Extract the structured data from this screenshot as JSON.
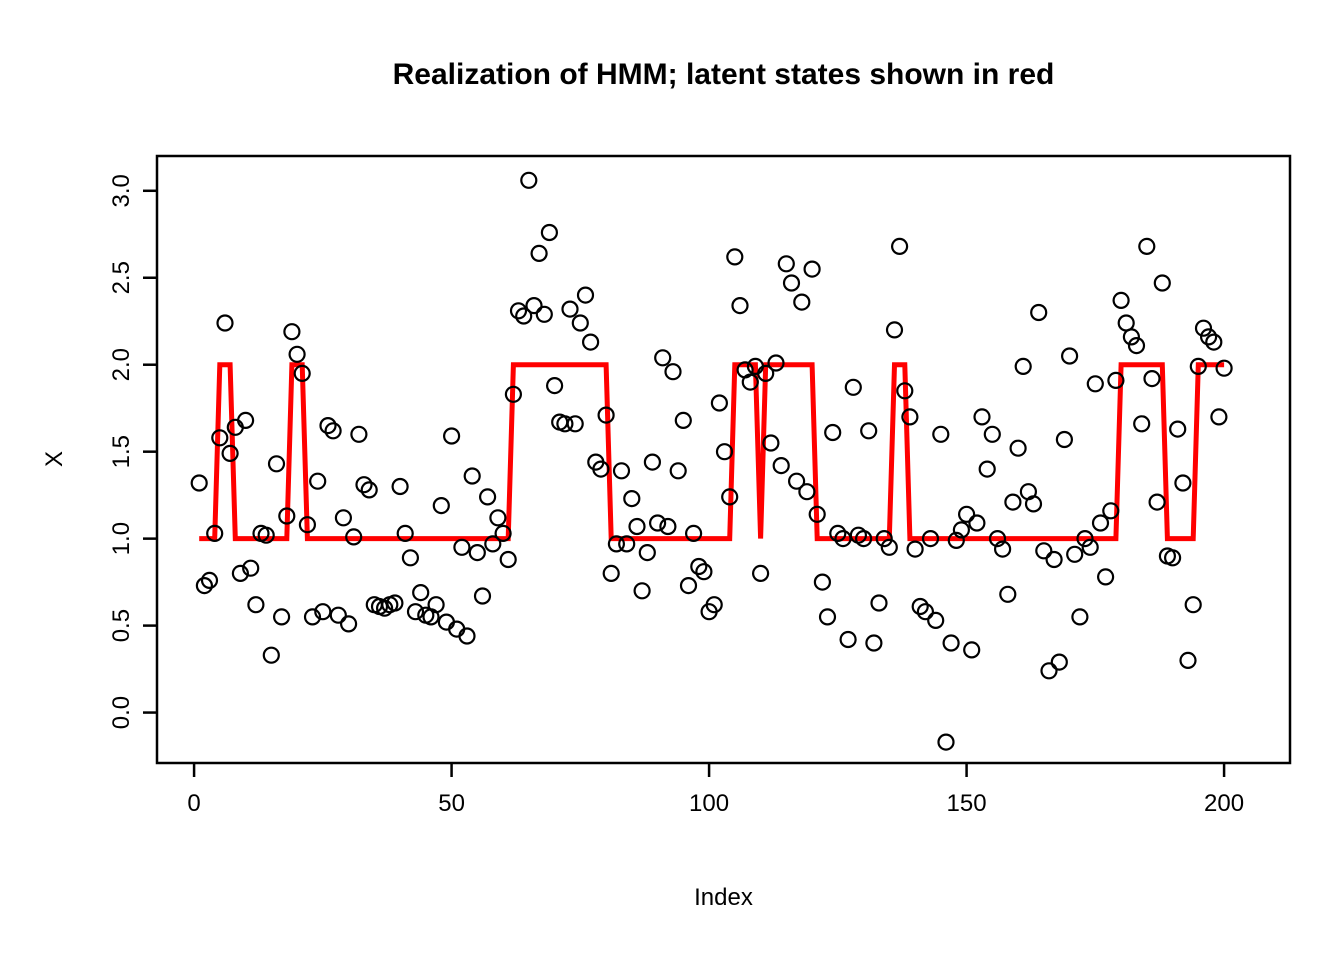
{
  "chart_data": {
    "type": "scatter",
    "title": "Realization of HMM; latent states shown in red",
    "xlabel": "Index",
    "ylabel": "X",
    "x_ticks": [
      0,
      50,
      100,
      150,
      200
    ],
    "y_ticks": [
      0.0,
      0.5,
      1.0,
      1.5,
      2.0,
      2.5,
      3.0
    ],
    "xlim": [
      -7.2,
      212.8
    ],
    "ylim": [
      -0.29,
      3.2
    ],
    "grid": false,
    "legend": "none",
    "point_color": "#000000",
    "state_line_color": "#FF0000",
    "x": [
      1,
      2,
      3,
      4,
      5,
      6,
      7,
      8,
      9,
      10,
      11,
      12,
      13,
      14,
      15,
      16,
      17,
      18,
      19,
      20,
      21,
      22,
      23,
      24,
      25,
      26,
      27,
      28,
      29,
      30,
      31,
      32,
      33,
      34,
      35,
      36,
      37,
      38,
      39,
      40,
      41,
      42,
      43,
      44,
      45,
      46,
      47,
      48,
      49,
      50,
      51,
      52,
      53,
      54,
      55,
      56,
      57,
      58,
      59,
      60,
      61,
      62,
      63,
      64,
      65,
      66,
      67,
      68,
      69,
      70,
      71,
      72,
      73,
      74,
      75,
      76,
      77,
      78,
      79,
      80,
      81,
      82,
      83,
      84,
      85,
      86,
      87,
      88,
      89,
      90,
      91,
      92,
      93,
      94,
      95,
      96,
      97,
      98,
      99,
      100,
      101,
      102,
      103,
      104,
      105,
      106,
      107,
      108,
      109,
      110,
      111,
      112,
      113,
      114,
      115,
      116,
      117,
      118,
      119,
      120,
      121,
      122,
      123,
      124,
      125,
      126,
      127,
      128,
      129,
      130,
      131,
      132,
      133,
      134,
      135,
      136,
      137,
      138,
      139,
      140,
      141,
      142,
      143,
      144,
      145,
      146,
      147,
      148,
      149,
      150,
      151,
      152,
      153,
      154,
      155,
      156,
      157,
      158,
      159,
      160,
      161,
      162,
      163,
      164,
      165,
      166,
      167,
      168,
      169,
      170,
      171,
      172,
      173,
      174,
      175,
      176,
      177,
      178,
      179,
      180,
      181,
      182,
      183,
      184,
      185,
      186,
      187,
      188,
      189,
      190,
      191,
      192,
      193,
      194,
      195,
      196,
      197,
      198,
      199,
      200
    ],
    "y": [
      1.32,
      0.73,
      0.76,
      1.03,
      1.58,
      2.24,
      1.49,
      1.64,
      0.8,
      1.68,
      0.83,
      0.62,
      1.03,
      1.02,
      0.33,
      1.43,
      0.55,
      1.13,
      2.19,
      2.06,
      1.95,
      1.08,
      0.55,
      1.33,
      0.58,
      1.65,
      1.62,
      0.56,
      1.12,
      0.51,
      1.01,
      1.6,
      1.31,
      1.28,
      0.62,
      0.61,
      0.6,
      0.62,
      0.63,
      1.3,
      1.03,
      0.89,
      0.58,
      0.69,
      0.56,
      0.55,
      0.62,
      1.19,
      0.52,
      1.59,
      0.48,
      0.95,
      0.44,
      1.36,
      0.92,
      0.67,
      1.24,
      0.97,
      1.12,
      1.03,
      0.88,
      1.83,
      2.31,
      2.28,
      3.06,
      2.34,
      2.64,
      2.29,
      2.76,
      1.88,
      1.67,
      1.66,
      2.32,
      1.66,
      2.24,
      2.4,
      2.13,
      1.44,
      1.4,
      1.71,
      0.8,
      0.97,
      1.39,
      0.97,
      1.23,
      1.07,
      0.7,
      0.92,
      1.44,
      1.09,
      2.04,
      1.07,
      1.96,
      1.39,
      1.68,
      0.73,
      1.03,
      0.84,
      0.81,
      0.58,
      0.62,
      1.78,
      1.5,
      1.24,
      2.62,
      2.34,
      1.97,
      1.9,
      1.99,
      0.8,
      1.95,
      1.55,
      2.01,
      1.42,
      2.58,
      2.47,
      1.33,
      2.36,
      1.27,
      2.55,
      1.14,
      0.75,
      0.55,
      1.61,
      1.03,
      1.0,
      0.42,
      1.87,
      1.02,
      1.0,
      1.62,
      0.4,
      0.63,
      1.0,
      0.95,
      2.2,
      2.68,
      1.85,
      1.7,
      0.94,
      0.61,
      0.58,
      1.0,
      0.53,
      1.6,
      -0.17,
      0.4,
      0.99,
      1.05,
      1.14,
      0.36,
      1.09,
      1.7,
      1.4,
      1.6,
      1.0,
      0.94,
      0.68,
      1.21,
      1.52,
      1.99,
      1.27,
      1.2,
      2.3,
      0.93,
      0.24,
      0.88,
      0.29,
      1.57,
      2.05,
      0.91,
      0.55,
      1.0,
      0.95,
      1.89,
      1.09,
      0.78,
      1.16,
      1.91,
      2.37,
      2.24,
      2.16,
      2.11,
      1.66,
      2.68,
      1.92,
      1.21,
      2.47,
      0.9,
      0.89,
      1.63,
      1.32,
      0.3,
      0.62,
      1.99,
      2.21,
      2.16,
      2.13,
      1.7,
      1.98
    ],
    "latent_states": [
      1,
      1,
      1,
      1,
      2,
      2,
      2,
      1,
      1,
      1,
      1,
      1,
      1,
      1,
      1,
      1,
      1,
      1,
      2,
      2,
      2,
      1,
      1,
      1,
      1,
      1,
      1,
      1,
      1,
      1,
      1,
      1,
      1,
      1,
      1,
      1,
      1,
      1,
      1,
      1,
      1,
      1,
      1,
      1,
      1,
      1,
      1,
      1,
      1,
      1,
      1,
      1,
      1,
      1,
      1,
      1,
      1,
      1,
      1,
      1,
      1,
      2,
      2,
      2,
      2,
      2,
      2,
      2,
      2,
      2,
      2,
      2,
      2,
      2,
      2,
      2,
      2,
      2,
      2,
      2,
      1,
      1,
      1,
      1,
      1,
      1,
      1,
      1,
      1,
      1,
      1,
      1,
      1,
      1,
      1,
      1,
      1,
      1,
      1,
      1,
      1,
      1,
      1,
      1,
      2,
      2,
      2,
      2,
      2,
      1,
      2,
      2,
      2,
      2,
      2,
      2,
      2,
      2,
      2,
      2,
      1,
      1,
      1,
      1,
      1,
      1,
      1,
      1,
      1,
      1,
      1,
      1,
      1,
      1,
      1,
      2,
      2,
      2,
      1,
      1,
      1,
      1,
      1,
      1,
      1,
      1,
      1,
      1,
      1,
      1,
      1,
      1,
      1,
      1,
      1,
      1,
      1,
      1,
      1,
      1,
      1,
      1,
      1,
      1,
      1,
      1,
      1,
      1,
      1,
      1,
      1,
      1,
      1,
      1,
      1,
      1,
      1,
      1,
      1,
      2,
      2,
      2,
      2,
      2,
      2,
      2,
      2,
      2,
      1,
      1,
      1,
      1,
      1,
      1,
      2,
      2,
      2,
      2,
      2,
      2
    ],
    "state_run_segments": [
      {
        "from": 1,
        "to": 4,
        "state": 1
      },
      {
        "from": 5,
        "to": 7,
        "state": 2
      },
      {
        "from": 8,
        "to": 18,
        "state": 1
      },
      {
        "from": 19,
        "to": 21,
        "state": 2
      },
      {
        "from": 22,
        "to": 61,
        "state": 1
      },
      {
        "from": 62,
        "to": 80,
        "state": 2
      },
      {
        "from": 81,
        "to": 104,
        "state": 1
      },
      {
        "from": 105,
        "to": 109,
        "state": 2
      },
      {
        "from": 110,
        "to": 110,
        "state": 1
      },
      {
        "from": 111,
        "to": 120,
        "state": 2
      },
      {
        "from": 121,
        "to": 135,
        "state": 1
      },
      {
        "from": 136,
        "to": 138,
        "state": 2
      },
      {
        "from": 139,
        "to": 179,
        "state": 1
      },
      {
        "from": 180,
        "to": 188,
        "state": 2
      },
      {
        "from": 189,
        "to": 194,
        "state": 1
      },
      {
        "from": 195,
        "to": 200,
        "state": 2
      }
    ]
  },
  "layout_text": {
    "title": "Realization of HMM; latent states shown in red",
    "xlabel": "Index",
    "ylabel": "X"
  }
}
